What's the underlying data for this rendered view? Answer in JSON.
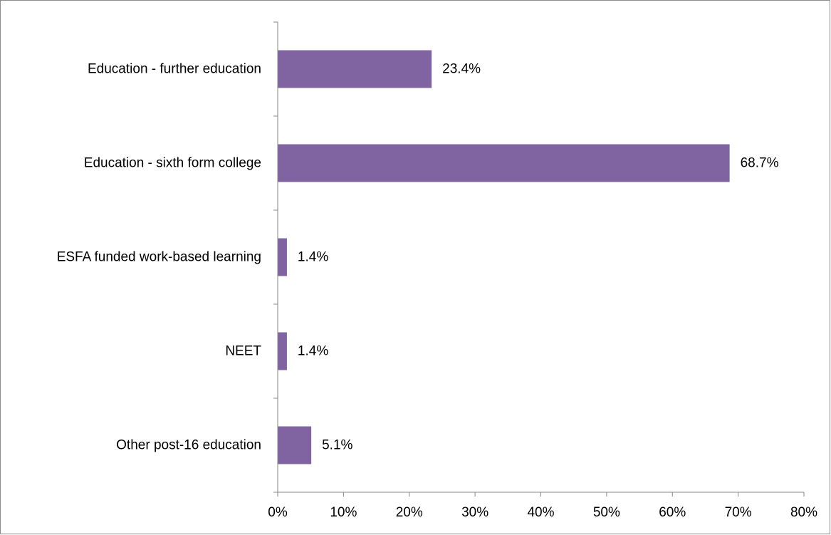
{
  "chart_data": {
    "type": "bar",
    "orientation": "horizontal",
    "title": "",
    "xlabel": "",
    "ylabel": "",
    "categories": [
      "Education - further education",
      "Education - sixth form college",
      "ESFA funded work-based learning",
      "NEET",
      "Other post-16 education"
    ],
    "values": [
      23.4,
      68.7,
      1.4,
      1.4,
      5.1
    ],
    "value_labels": [
      "23.4%",
      "68.7%",
      "1.4%",
      "1.4%",
      "5.1%"
    ],
    "xlim": [
      0,
      80
    ],
    "xticks": [
      0,
      10,
      20,
      30,
      40,
      50,
      60,
      70,
      80
    ],
    "xtick_labels": [
      "0%",
      "10%",
      "20%",
      "30%",
      "40%",
      "50%",
      "60%",
      "70%",
      "80%"
    ],
    "grid": false,
    "legend": "none",
    "bar_color": "#8064a2"
  }
}
